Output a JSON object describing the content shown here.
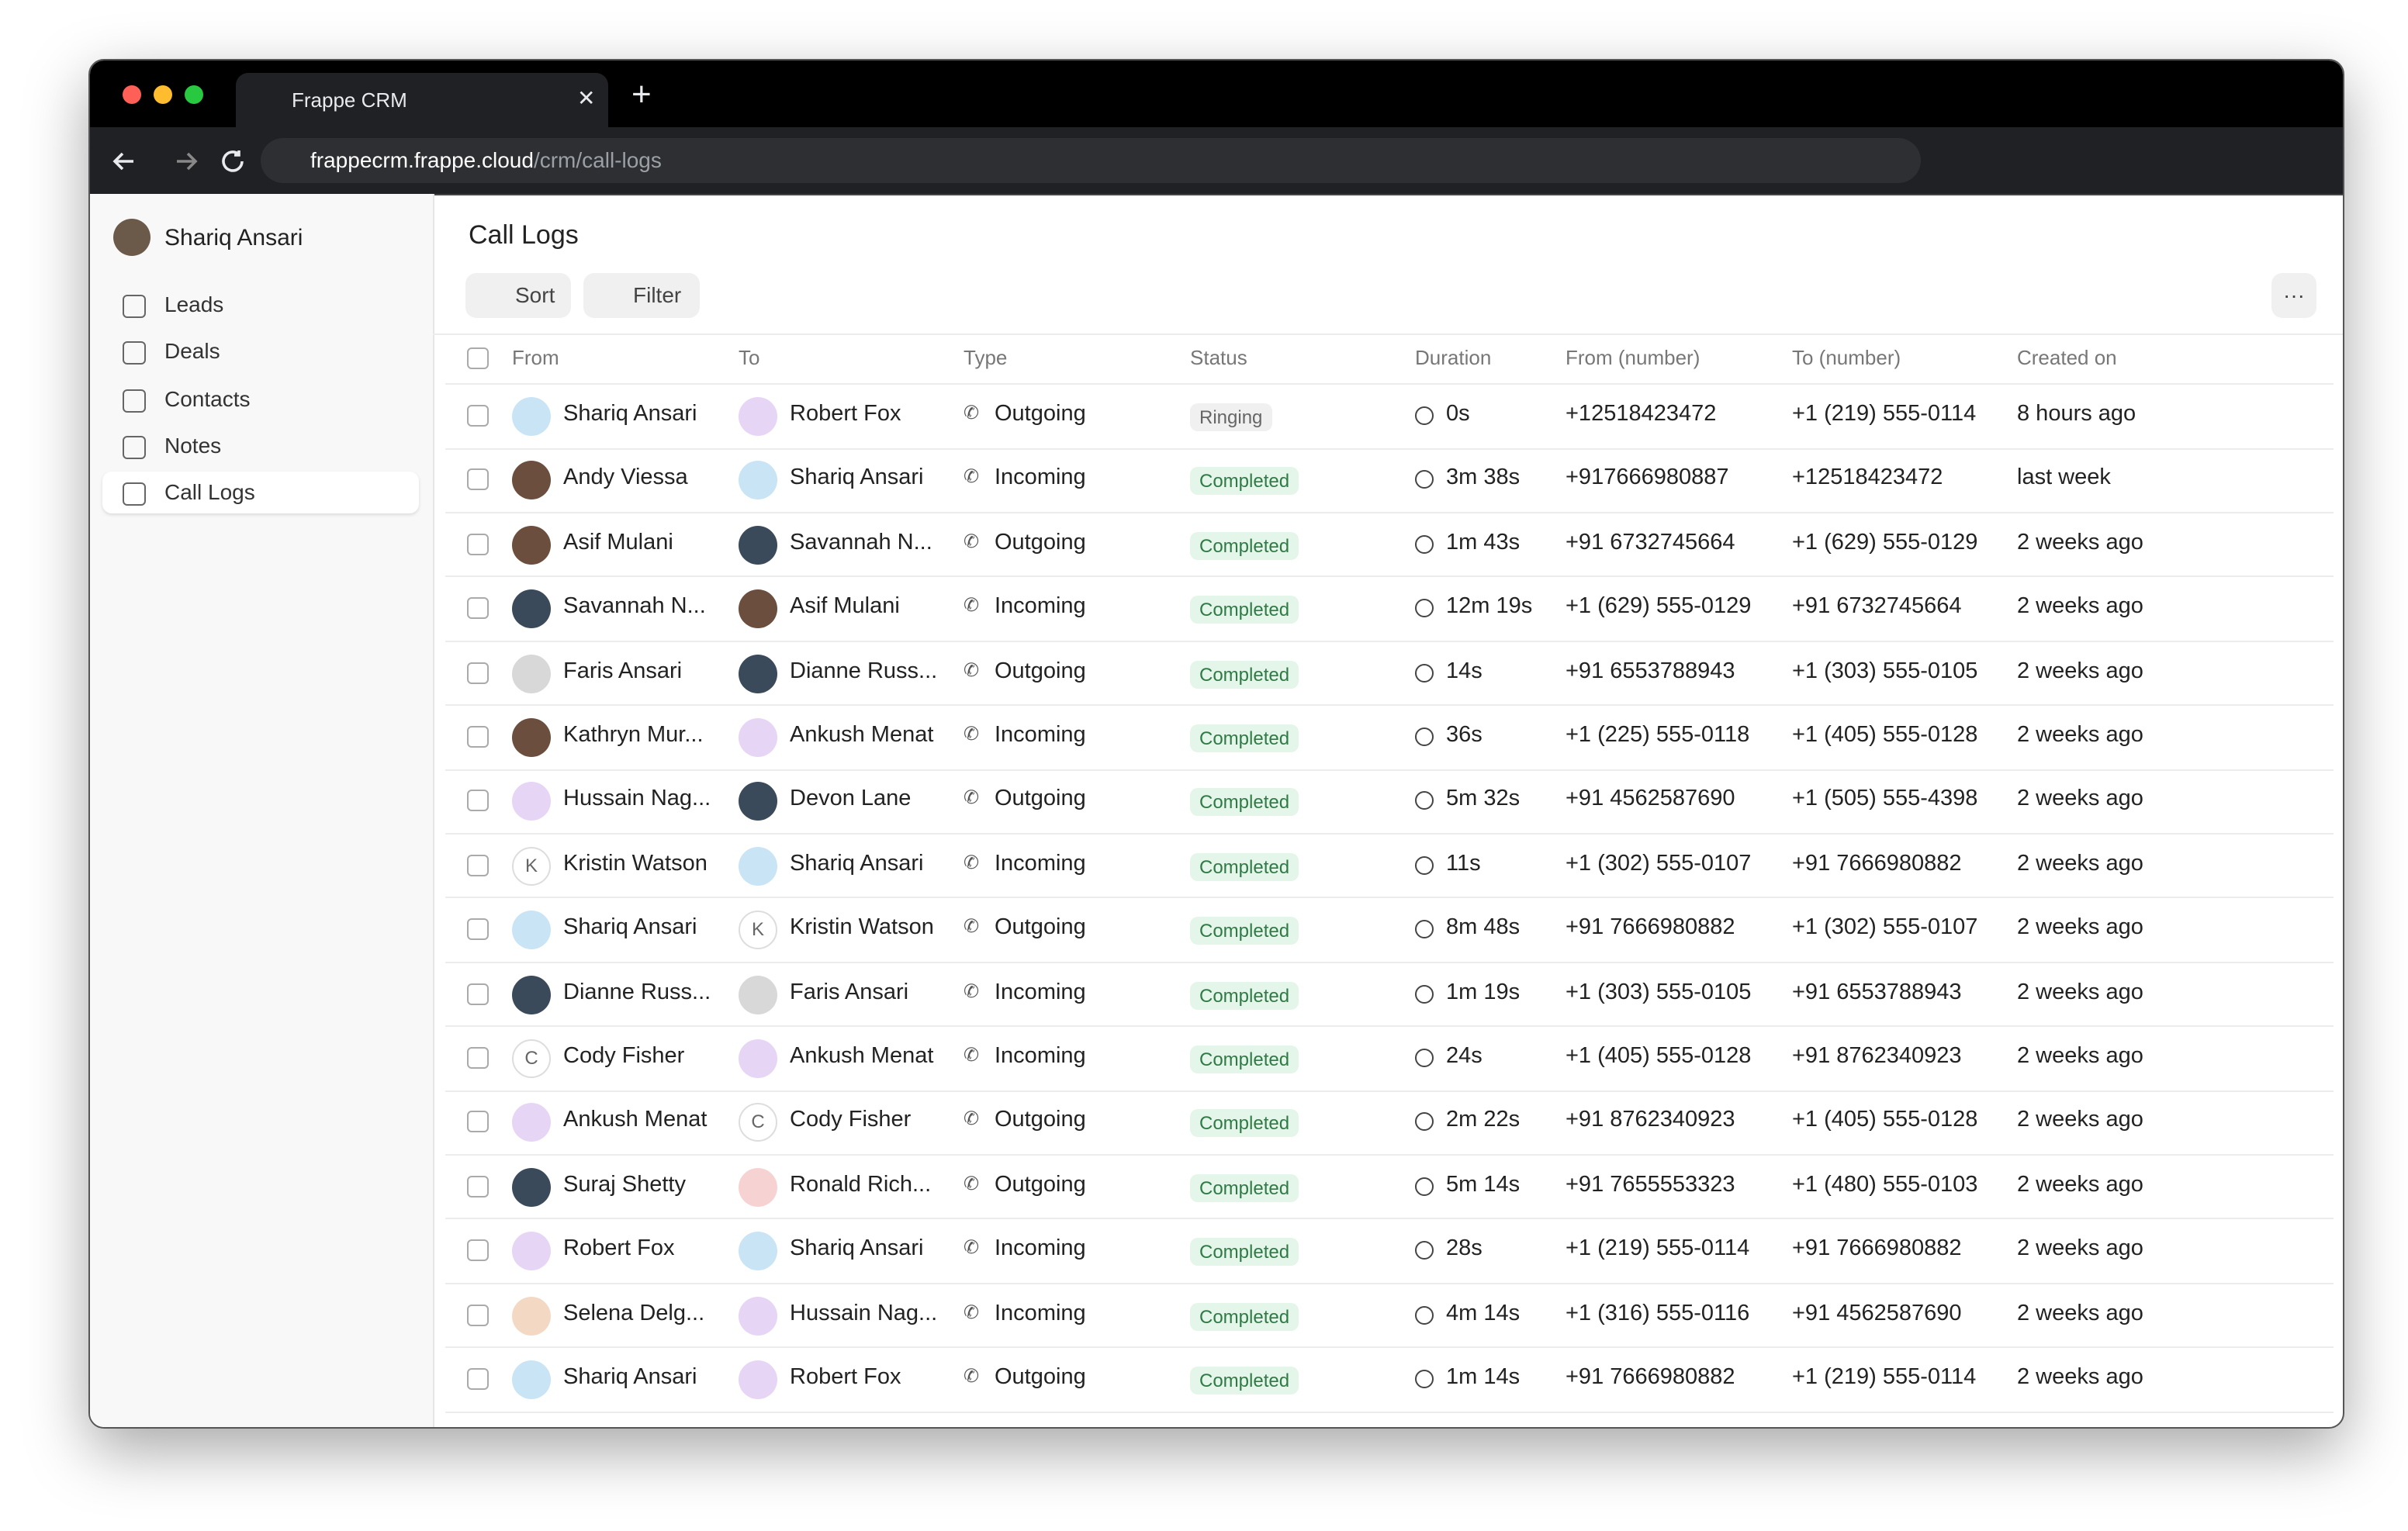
{
  "browser": {
    "tab_title": "Frappe CRM",
    "url": {
      "host": "frappecrm.frappe.cloud",
      "path": "/crm/call-logs"
    }
  },
  "sidebar": {
    "user": "Shariq Ansari",
    "nav": [
      "Leads",
      "Deals",
      "Contacts",
      "Notes",
      "Call Logs"
    ],
    "active": 4
  },
  "page": {
    "title": "Call Logs",
    "buttons": [
      "Sort",
      "Filter"
    ]
  },
  "table": {
    "columns": [
      "From",
      "To",
      "Type",
      "Status",
      "Duration",
      "From (number)",
      "To (number)",
      "Created on"
    ],
    "rows": [
      {
        "from": "Shariq Ansari",
        "to": "Robert Fox",
        "type": "Outgoing",
        "status": "Ringing",
        "duration": "0s",
        "from_number": "+12518423472",
        "to_number": "+1 (219) 555-0114",
        "created": "8 hours ago"
      },
      {
        "from": "Andy Viessa",
        "to": "Shariq Ansari",
        "type": "Incoming",
        "status": "Completed",
        "duration": "3m 38s",
        "from_number": "+917666980887",
        "to_number": "+12518423472",
        "created": "last week"
      },
      {
        "from": "Asif Mulani",
        "to": "Savannah N...",
        "type": "Outgoing",
        "status": "Completed",
        "duration": "1m 43s",
        "from_number": "+91 6732745664",
        "to_number": "+1 (629) 555-0129",
        "created": "2 weeks ago"
      },
      {
        "from": "Savannah N...",
        "to": "Asif Mulani",
        "type": "Incoming",
        "status": "Completed",
        "duration": "12m 19s",
        "from_number": "+1 (629) 555-0129",
        "to_number": "+91 6732745664",
        "created": "2 weeks ago"
      },
      {
        "from": "Faris Ansari",
        "to": "Dianne Russ...",
        "type": "Outgoing",
        "status": "Completed",
        "duration": "14s",
        "from_number": "+91 6553788943",
        "to_number": "+1 (303) 555-0105",
        "created": "2 weeks ago"
      },
      {
        "from": "Kathryn Mur...",
        "to": "Ankush Menat",
        "type": "Incoming",
        "status": "Completed",
        "duration": "36s",
        "from_number": "+1 (225) 555-0118",
        "to_number": "+1 (405) 555-0128",
        "created": "2 weeks ago"
      },
      {
        "from": "Hussain Nag...",
        "to": "Devon Lane",
        "type": "Outgoing",
        "status": "Completed",
        "duration": "5m 32s",
        "from_number": "+91 4562587690",
        "to_number": "+1 (505) 555-4398",
        "created": "2 weeks ago"
      },
      {
        "from": "Kristin Watson",
        "from_initial": "K",
        "to": "Shariq Ansari",
        "type": "Incoming",
        "status": "Completed",
        "duration": "11s",
        "from_number": "+1 (302) 555-0107",
        "to_number": "+91 7666980882",
        "created": "2 weeks ago"
      },
      {
        "from": "Shariq Ansari",
        "to": "Kristin Watson",
        "to_initial": "K",
        "type": "Outgoing",
        "status": "Completed",
        "duration": "8m 48s",
        "from_number": "+91 7666980882",
        "to_number": "+1 (302) 555-0107",
        "created": "2 weeks ago"
      },
      {
        "from": "Dianne Russ...",
        "to": "Faris Ansari",
        "type": "Incoming",
        "status": "Completed",
        "duration": "1m 19s",
        "from_number": "+1 (303) 555-0105",
        "to_number": "+91 6553788943",
        "created": "2 weeks ago"
      },
      {
        "from": "Cody Fisher",
        "from_initial": "C",
        "to": "Ankush Menat",
        "type": "Incoming",
        "status": "Completed",
        "duration": "24s",
        "from_number": "+1 (405) 555-0128",
        "to_number": "+91 8762340923",
        "created": "2 weeks ago"
      },
      {
        "from": "Ankush Menat",
        "to": "Cody Fisher",
        "to_initial": "C",
        "type": "Outgoing",
        "status": "Completed",
        "duration": "2m 22s",
        "from_number": "+91 8762340923",
        "to_number": "+1 (405) 555-0128",
        "created": "2 weeks ago"
      },
      {
        "from": "Suraj Shetty",
        "to": "Ronald Rich...",
        "type": "Outgoing",
        "status": "Completed",
        "duration": "5m 14s",
        "from_number": "+91 7655553323",
        "to_number": "+1 (480) 555-0103",
        "created": "2 weeks ago"
      },
      {
        "from": "Robert Fox",
        "to": "Shariq Ansari",
        "type": "Incoming",
        "status": "Completed",
        "duration": "28s",
        "from_number": "+1 (219) 555-0114",
        "to_number": "+91 7666980882",
        "created": "2 weeks ago"
      },
      {
        "from": "Selena Delg...",
        "to": "Hussain Nag...",
        "type": "Incoming",
        "status": "Completed",
        "duration": "4m 14s",
        "from_number": "+1 (316) 555-0116",
        "to_number": "+91 4562587690",
        "created": "2 weeks ago"
      },
      {
        "from": "Shariq Ansari",
        "to": "Robert Fox",
        "type": "Outgoing",
        "status": "Completed",
        "duration": "1m 14s",
        "from_number": "+91 7666980882",
        "to_number": "+1 (219) 555-0114",
        "created": "2 weeks ago"
      }
    ]
  }
}
